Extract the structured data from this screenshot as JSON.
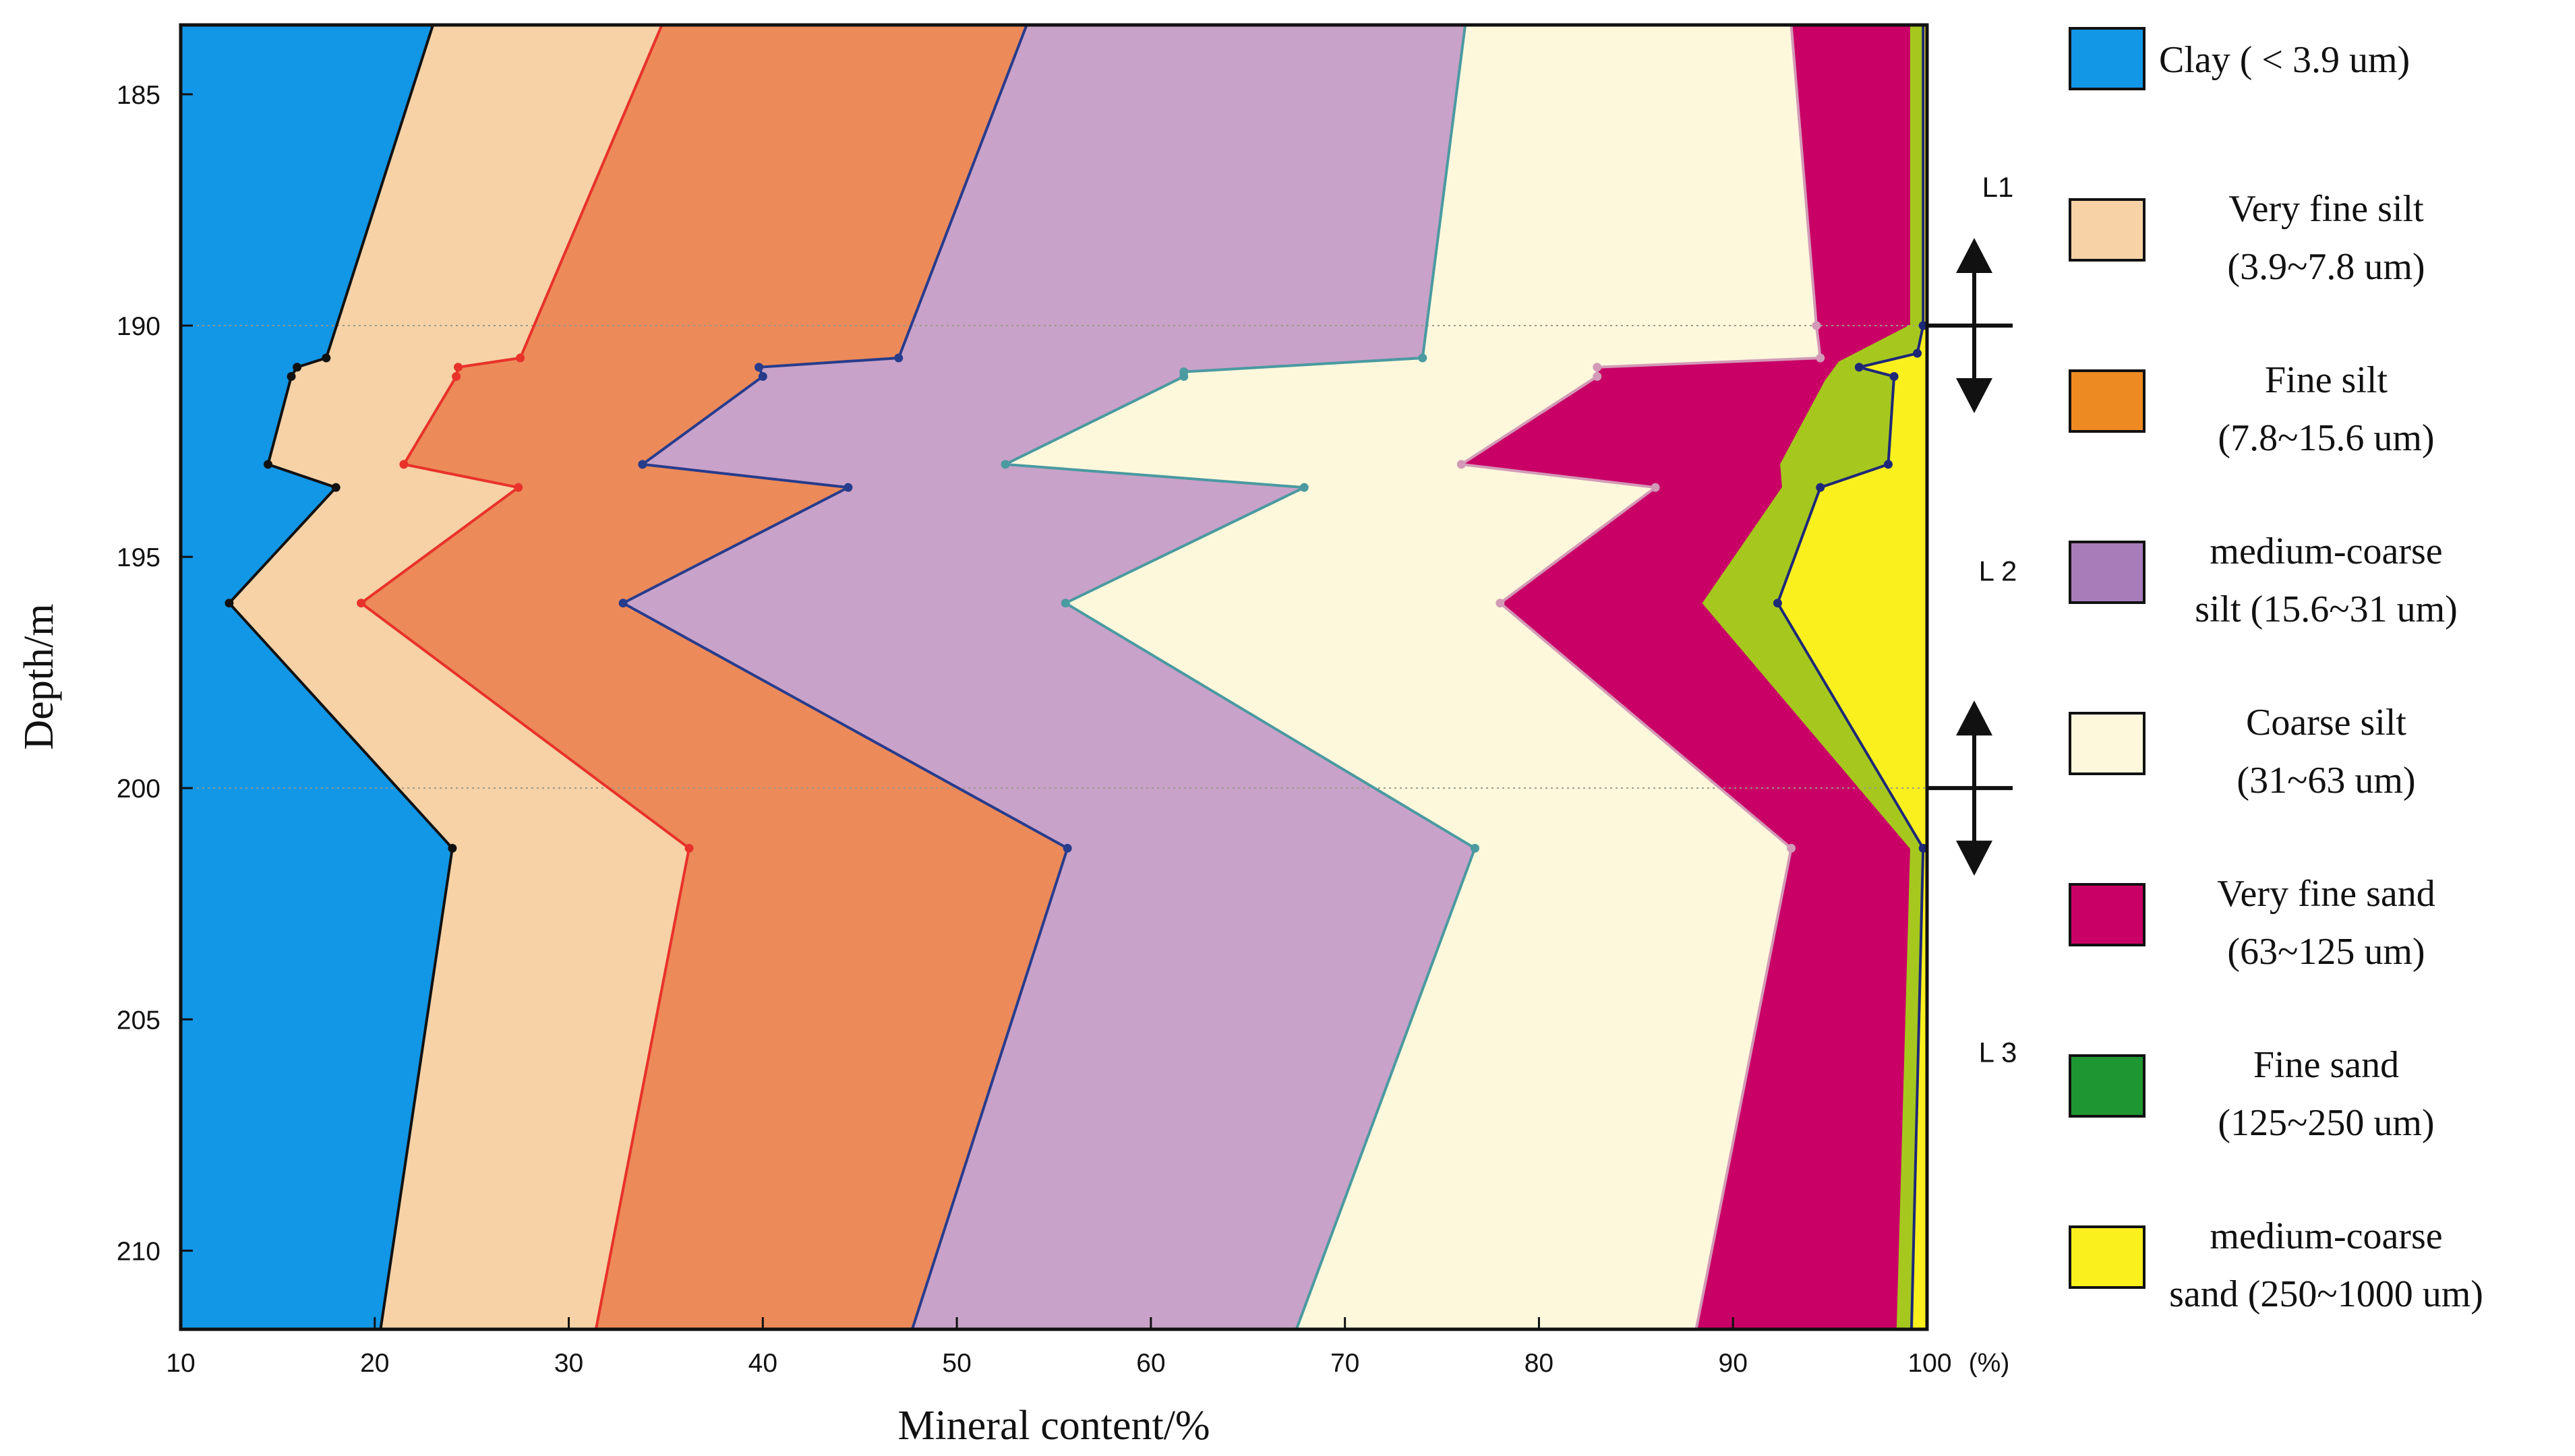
{
  "chart_data": {
    "type": "area",
    "orientation": "depth-profile (cumulative percentage on x, depth on y, depth increasing downward)",
    "title": "",
    "xlabel": "Mineral content/%",
    "ylabel": "Depth/m",
    "x_unit": "(%)",
    "xlim": [
      10,
      100
    ],
    "ylim": [
      183.5,
      211.7
    ],
    "x_ticks": [
      10,
      20,
      30,
      40,
      50,
      60,
      70,
      80,
      90,
      100
    ],
    "y_ticks": [
      185,
      190,
      195,
      200,
      205,
      210
    ],
    "colors": {
      "clay": "#1296E6",
      "very_fine_silt": "#F6D2A6",
      "fine_silt": "#EC8A5A",
      "medium_coarse_silt": "#C9A2C9",
      "coarse_silt": "#FDF8DC",
      "very_fine_sand": "#C90066",
      "fine_sand": "#A6C81E",
      "medium_coarse_sand": "#FAF01E",
      "legend_fine_sand": "#1E9632",
      "legend_medium_coarse_silt": "#A77CB9",
      "legend_fine_silt": "#EE8A22"
    },
    "boundaries": [
      {
        "name": "Clay ( < 3.9 um)",
        "key": "clay",
        "line_color": "#111111",
        "show_markers": true,
        "points": [
          [
            23.0,
            183.5
          ],
          [
            17.5,
            190.7
          ],
          [
            16.0,
            190.9
          ],
          [
            15.7,
            191.1
          ],
          [
            14.5,
            193.0
          ],
          [
            18.0,
            193.5
          ],
          [
            12.5,
            196.0
          ],
          [
            24.0,
            201.3
          ],
          [
            20.3,
            211.7
          ]
        ]
      },
      {
        "name": "Very fine silt (3.9~7.8 um)",
        "key": "very_fine_silt",
        "line_color": "#E8322A",
        "show_markers": true,
        "points": [
          [
            34.8,
            183.5
          ],
          [
            27.5,
            190.7
          ],
          [
            24.3,
            190.9
          ],
          [
            24.2,
            191.1
          ],
          [
            21.5,
            193.0
          ],
          [
            27.4,
            193.5
          ],
          [
            19.3,
            196.0
          ],
          [
            36.2,
            201.3
          ],
          [
            31.4,
            211.7
          ]
        ]
      },
      {
        "name": "Fine silt (7.8~15.6 um)",
        "key": "fine_silt",
        "line_color": "#283C8C",
        "show_markers": true,
        "points": [
          [
            53.6,
            183.5
          ],
          [
            47.0,
            190.7
          ],
          [
            39.8,
            190.9
          ],
          [
            40.0,
            191.1
          ],
          [
            33.8,
            193.0
          ],
          [
            44.4,
            193.5
          ],
          [
            32.8,
            196.0
          ],
          [
            55.7,
            201.3
          ],
          [
            47.7,
            211.7
          ]
        ]
      },
      {
        "name": "medium-coarse silt (15.6~31 um)",
        "key": "medium_coarse_silt",
        "line_color": "#4A9AA0",
        "show_markers": true,
        "points": [
          [
            76.2,
            183.5
          ],
          [
            74.0,
            190.7
          ],
          [
            61.7,
            191.0
          ],
          [
            61.7,
            191.1
          ],
          [
            52.5,
            193.0
          ],
          [
            67.9,
            193.5
          ],
          [
            55.6,
            196.0
          ],
          [
            76.7,
            201.3
          ],
          [
            67.5,
            211.7
          ]
        ]
      },
      {
        "name": "Coarse silt (31~63 um)",
        "key": "coarse_silt",
        "line_color": "#D39AB7",
        "show_markers": true,
        "points": [
          [
            93.0,
            183.5
          ],
          [
            94.3,
            190.0
          ],
          [
            94.5,
            190.7
          ],
          [
            83.0,
            190.9
          ],
          [
            83.0,
            191.1
          ],
          [
            76.0,
            193.0
          ],
          [
            86.0,
            193.5
          ],
          [
            78.0,
            196.0
          ],
          [
            93.0,
            201.3
          ],
          [
            88.1,
            211.7
          ]
        ]
      },
      {
        "name": "Very fine sand (63~125 um)",
        "key": "very_fine_sand",
        "line_color": "#A6C81E",
        "show_markers": false,
        "points": [
          [
            99.2,
            183.5
          ],
          [
            99.2,
            190.0
          ],
          [
            95.5,
            190.8
          ],
          [
            94.8,
            191.2
          ],
          [
            92.5,
            193.0
          ],
          [
            92.6,
            193.5
          ],
          [
            88.5,
            196.0
          ],
          [
            99.2,
            201.3
          ],
          [
            98.5,
            211.7
          ]
        ]
      },
      {
        "name": "Fine sand (125~250 um)",
        "key": "fine_sand",
        "line_color": "#1E2878",
        "show_markers": true,
        "points": [
          [
            99.8,
            183.5
          ],
          [
            99.8,
            190.0
          ],
          [
            99.5,
            190.6
          ],
          [
            96.5,
            190.9
          ],
          [
            98.3,
            191.1
          ],
          [
            98.0,
            193.0
          ],
          [
            94.5,
            193.5
          ],
          [
            92.3,
            196.0
          ],
          [
            99.8,
            201.3
          ],
          [
            99.2,
            211.7
          ]
        ]
      },
      {
        "name": "medium-coarse sand (250~1000 um)",
        "key": "medium_coarse_sand",
        "line_color": "#1E2878",
        "show_markers": false,
        "points": [
          [
            100,
            183.5
          ],
          [
            100,
            211.7
          ]
        ]
      }
    ],
    "legend": [
      {
        "line1": "Clay ( < 3.9 um)",
        "line2": "",
        "color": "#1296E6"
      },
      {
        "line1": "Very fine silt",
        "line2": "(3.9~7.8 um)",
        "color": "#F6D2A6"
      },
      {
        "line1": "Fine silt",
        "line2": "(7.8~15.6 um)",
        "color": "#EE8A22"
      },
      {
        "line1": "medium-coarse",
        "line2": "silt (15.6~31 um)",
        "color": "#A77CB9"
      },
      {
        "line1": "Coarse silt",
        "line2": "(31~63 um)",
        "color": "#FDF8DC"
      },
      {
        "line1": "Very fine sand",
        "line2": "(63~125 um)",
        "color": "#C90066"
      },
      {
        "line1": "Fine sand",
        "line2": "(125~250 um)",
        "color": "#1E9632"
      },
      {
        "line1": "medium-coarse",
        "line2": "sand (250~1000 um)",
        "color": "#FAF01E"
      }
    ],
    "legend_placement": "right",
    "zones": [
      {
        "label": "L1",
        "depth": 187.0
      },
      {
        "label": "L 2",
        "depth": 195.3
      },
      {
        "label": "L 3",
        "depth": 205.7
      }
    ],
    "zone_boundaries": [
      190.0,
      200.0
    ],
    "reference_lines": [
      190.0,
      200.0
    ]
  }
}
